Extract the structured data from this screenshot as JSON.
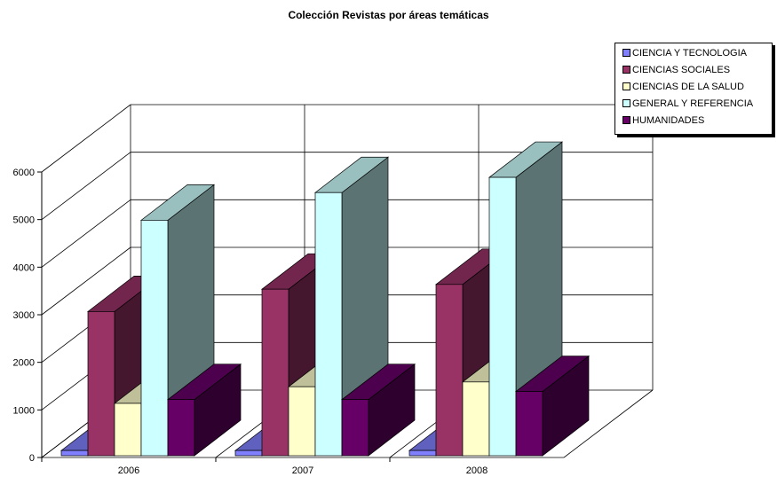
{
  "chart_data": {
    "type": "bar",
    "title": "Colección Revistas por áreas temáticas",
    "xlabel": "",
    "ylabel": "",
    "categories": [
      "2006",
      "2007",
      "2008"
    ],
    "y_ticks": [
      "0",
      "1000",
      "2000",
      "3000",
      "4000",
      "5000",
      "6000"
    ],
    "ylim": [
      0,
      6000
    ],
    "grid": true,
    "legend_position": "top-right",
    "series": [
      {
        "name": "CIENCIA Y TECNOLOGIA",
        "values": [
          110,
          110,
          110
        ],
        "color": "#8080ff"
      },
      {
        "name": "CIENCIAS SOCIALES",
        "values": [
          3030,
          3500,
          3600
        ],
        "color": "#993366"
      },
      {
        "name": "CIENCIAS DE LA SALUD",
        "values": [
          1100,
          1450,
          1550
        ],
        "color": "#ffffcc"
      },
      {
        "name": "GENERAL Y REFERENCIA",
        "values": [
          4950,
          5530,
          5850
        ],
        "color": "#ccffff"
      },
      {
        "name": "HUMANIDADES",
        "values": [
          1180,
          1180,
          1350
        ],
        "color": "#660066"
      }
    ]
  }
}
